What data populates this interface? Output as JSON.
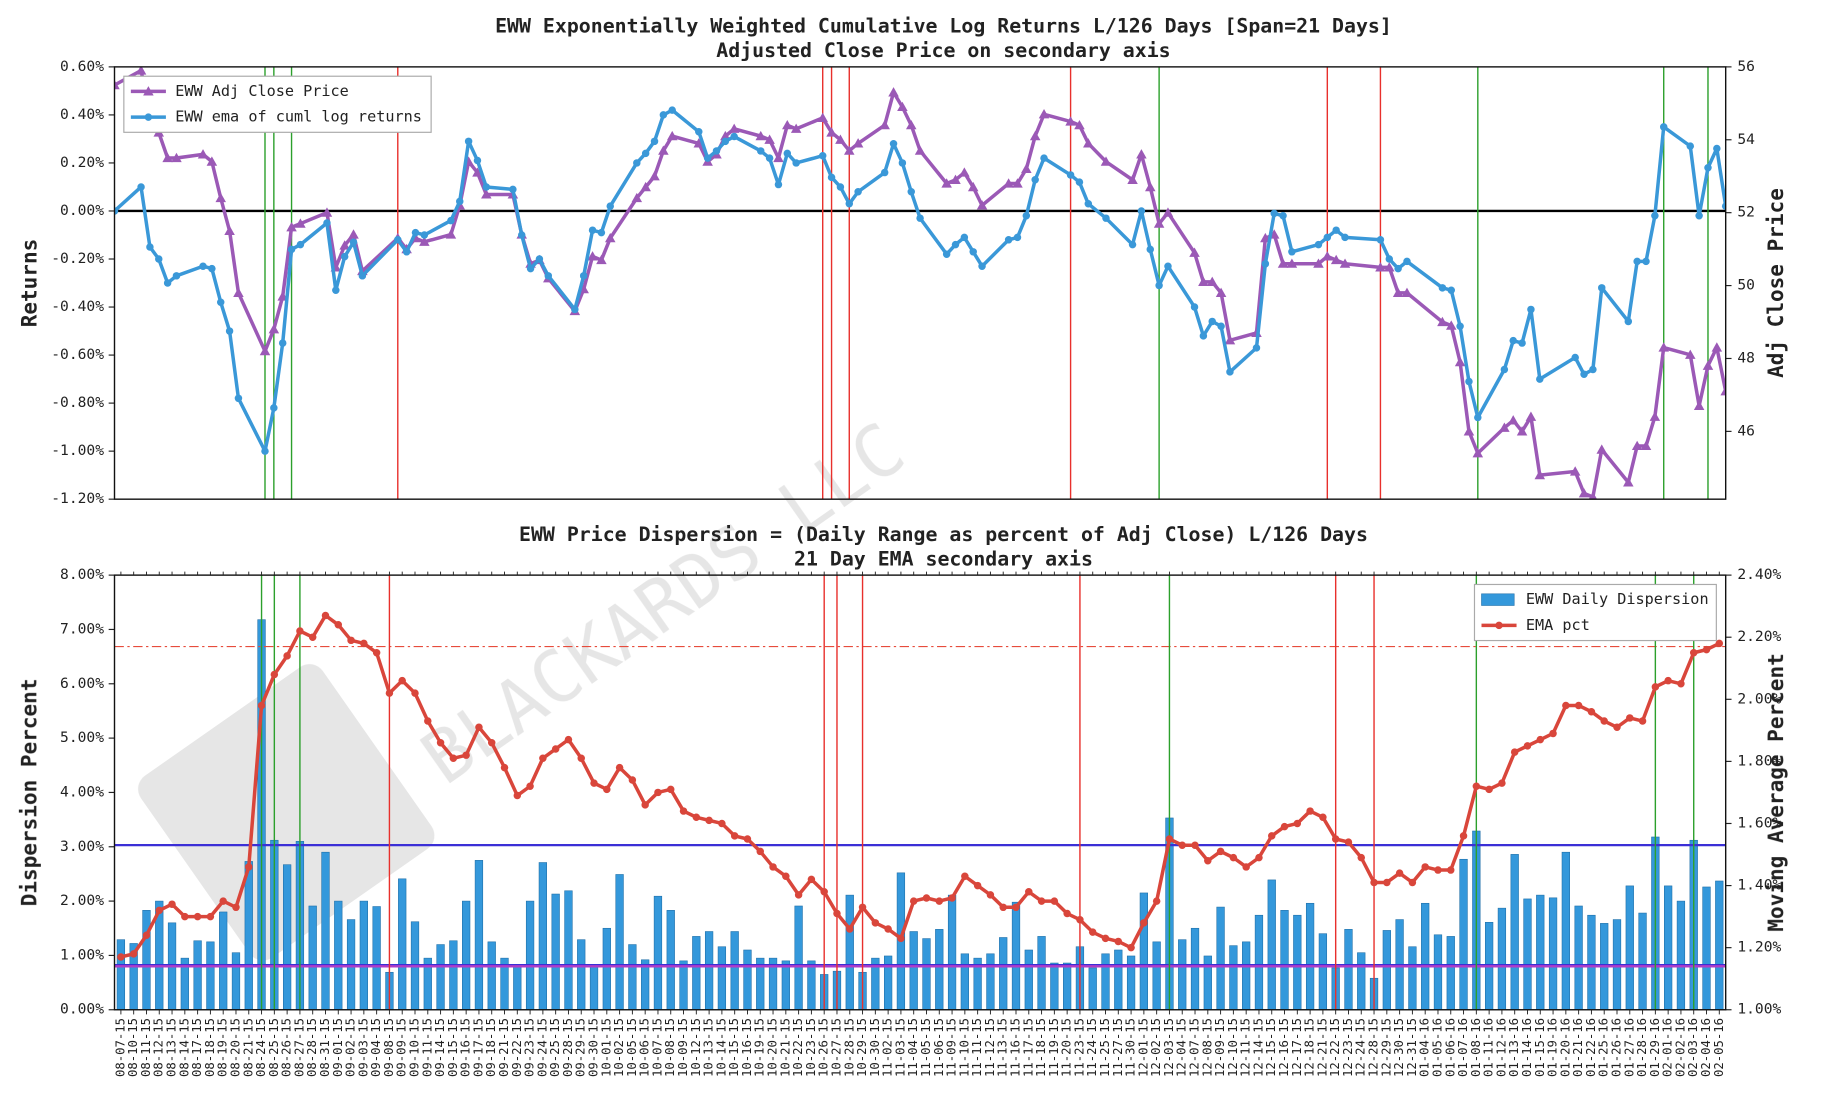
{
  "watermark": "BLACKARDS LLC",
  "chart_data": [
    {
      "type": "line",
      "title": "EWW Exponentially Weighted Cumulative Log Returns L/126 Days [Span=21 Days]",
      "subtitle": "Adjusted Close Price on secondary axis",
      "ylabel": "Returns",
      "y2label": "Adj Close Price",
      "ylim": [
        -1.2,
        0.6
      ],
      "yticks": [
        {
          "value": -1.2,
          "label": "-1.20%"
        },
        {
          "value": -1.0,
          "label": "-1.00%"
        },
        {
          "value": -0.8,
          "label": "-0.80%"
        },
        {
          "value": -0.6,
          "label": "-0.60%"
        },
        {
          "value": -0.4,
          "label": "-0.40%"
        },
        {
          "value": -0.2,
          "label": "-0.20%"
        },
        {
          "value": 0,
          "label": "0.00%"
        },
        {
          "value": 0.2,
          "label": "0.20%"
        },
        {
          "value": 0.4,
          "label": "0.40%"
        },
        {
          "value": 0.6,
          "label": "0.60%"
        }
      ],
      "y2lim": [
        44.14,
        56
      ],
      "y2ticks": [
        46,
        48,
        50,
        52,
        54,
        56
      ],
      "legend": "upper left",
      "hlines": [
        {
          "value": 0,
          "axis": "y",
          "color": "#000000",
          "style": "solid"
        }
      ],
      "green_markers": [
        "08-24-15",
        "08-25-15",
        "08-27-15",
        "12-03-15",
        "01-08-16",
        "01-29-16",
        "02-03-16"
      ],
      "red_markers": [
        "09-08-15",
        "10-26-15",
        "10-27-15",
        "10-29-15",
        "11-23-15",
        "12-22-15",
        "12-28-15"
      ],
      "series": [
        {
          "name": "EWW Adj Close Price",
          "color": "#9b59b6",
          "marker": "triangle",
          "axis": "y2",
          "values": [
            55.5,
            55.9,
            54.7,
            54.2,
            53.5,
            53.5,
            53.6,
            53.4,
            52.4,
            51.5,
            49.8,
            48.2,
            48.8,
            49.7,
            51.6,
            51.7,
            52.0,
            50.5,
            51.1,
            51.4,
            50.4,
            51.3,
            51.0,
            51.3,
            51.2,
            51.4,
            52.2,
            53.4,
            53.1,
            52.5,
            52.5,
            51.4,
            50.6,
            50.7,
            50.2,
            49.3,
            49.9,
            50.8,
            50.7,
            51.3,
            52.4,
            52.7,
            53.0,
            53.7,
            54.1,
            53.9,
            53.4,
            53.6,
            54.1,
            54.3,
            54.1,
            54.0,
            53.5,
            54.4,
            54.3,
            54.6,
            54.2,
            54.0,
            53.7,
            53.9,
            54.4,
            55.3,
            54.9,
            54.4,
            53.7,
            52.8,
            52.9,
            53.1,
            52.7,
            52.2,
            52.8,
            52.8,
            53.2,
            54.1,
            54.7,
            54.5,
            54.4,
            53.9,
            53.4,
            52.9,
            53.6,
            52.7,
            51.7,
            52.0,
            50.9,
            50.1,
            50.1,
            49.8,
            48.5,
            48.7,
            51.3,
            51.4,
            50.6,
            50.6,
            50.6,
            50.8,
            50.7,
            50.6,
            50.5,
            50.5,
            49.8,
            49.8,
            49.0,
            48.9,
            47.9,
            46.0,
            45.4,
            46.1,
            46.3,
            46.0,
            46.4,
            44.8,
            44.9,
            44.3,
            44.2,
            45.5,
            44.6,
            45.6,
            45.6,
            46.4,
            48.3,
            48.1,
            46.7,
            47.8,
            48.3,
            47.1
          ]
        },
        {
          "name": "EWW ema of cuml log returns",
          "color": "#3a98d8",
          "marker": "circle",
          "axis": "y",
          "values": [
            0.0,
            0.1,
            -0.15,
            -0.2,
            -0.3,
            -0.27,
            -0.23,
            -0.24,
            -0.38,
            -0.5,
            -0.78,
            -1.0,
            -0.82,
            -0.55,
            -0.16,
            -0.14,
            -0.05,
            -0.33,
            -0.19,
            -0.13,
            -0.27,
            -0.12,
            -0.17,
            -0.09,
            -0.1,
            -0.04,
            0.04,
            0.29,
            0.21,
            0.1,
            0.09,
            -0.1,
            -0.24,
            -0.2,
            -0.27,
            -0.41,
            -0.27,
            -0.08,
            -0.09,
            0.02,
            0.2,
            0.24,
            0.29,
            0.4,
            0.42,
            0.33,
            0.22,
            0.25,
            0.29,
            0.31,
            0.25,
            0.22,
            0.11,
            0.24,
            0.2,
            0.23,
            0.14,
            0.1,
            0.03,
            0.08,
            0.16,
            0.28,
            0.2,
            0.08,
            -0.03,
            -0.18,
            -0.14,
            -0.11,
            -0.17,
            -0.23,
            -0.12,
            -0.11,
            -0.02,
            0.13,
            0.22,
            0.15,
            0.12,
            0.03,
            -0.03,
            -0.14,
            0.0,
            -0.16,
            -0.31,
            -0.23,
            -0.4,
            -0.52,
            -0.46,
            -0.48,
            -0.67,
            -0.57,
            -0.22,
            -0.01,
            -0.02,
            -0.17,
            -0.14,
            -0.11,
            -0.08,
            -0.11,
            -0.12,
            -0.2,
            -0.24,
            -0.21,
            -0.32,
            -0.33,
            -0.48,
            -0.71,
            -0.86,
            -0.66,
            -0.54,
            -0.55,
            -0.41,
            -0.7,
            -0.61,
            -0.68,
            -0.66,
            -0.32,
            -0.46,
            -0.21,
            -0.21,
            -0.02,
            0.35,
            0.27,
            -0.02,
            0.18,
            0.26,
            0.02
          ]
        }
      ]
    },
    {
      "type": "bar",
      "title": "EWW Price Dispersion = (Daily Range as percent of Adj Close) L/126 Days",
      "subtitle": "21 Day EMA secondary axis",
      "ylabel": "Dispersion Percent",
      "y2label": "Moving Average Percent",
      "categories": [
        "08-07-15",
        "08-10-15",
        "08-11-15",
        "08-12-15",
        "08-13-15",
        "08-14-15",
        "08-17-15",
        "08-18-15",
        "08-19-15",
        "08-20-15",
        "08-21-15",
        "08-24-15",
        "08-25-15",
        "08-26-15",
        "08-27-15",
        "08-28-15",
        "08-31-15",
        "09-01-15",
        "09-02-15",
        "09-03-15",
        "09-04-15",
        "09-08-15",
        "09-09-15",
        "09-10-15",
        "09-11-15",
        "09-14-15",
        "09-15-15",
        "09-16-15",
        "09-17-15",
        "09-18-15",
        "09-21-15",
        "09-22-15",
        "09-23-15",
        "09-24-15",
        "09-25-15",
        "09-28-15",
        "09-29-15",
        "09-30-15",
        "10-01-15",
        "10-02-15",
        "10-05-15",
        "10-06-15",
        "10-07-15",
        "10-08-15",
        "10-09-15",
        "10-12-15",
        "10-13-15",
        "10-14-15",
        "10-15-15",
        "10-16-15",
        "10-19-15",
        "10-20-15",
        "10-21-15",
        "10-22-15",
        "10-23-15",
        "10-26-15",
        "10-27-15",
        "10-28-15",
        "10-29-15",
        "10-30-15",
        "11-02-15",
        "11-03-15",
        "11-04-15",
        "11-05-15",
        "11-06-15",
        "11-09-15",
        "11-10-15",
        "11-11-15",
        "11-12-15",
        "11-13-15",
        "11-16-15",
        "11-17-15",
        "11-18-15",
        "11-19-15",
        "11-20-15",
        "11-23-15",
        "11-24-15",
        "11-25-15",
        "11-27-15",
        "11-30-15",
        "12-01-15",
        "12-02-15",
        "12-03-15",
        "12-04-15",
        "12-07-15",
        "12-08-15",
        "12-09-15",
        "12-10-15",
        "12-11-15",
        "12-14-15",
        "12-15-15",
        "12-16-15",
        "12-17-15",
        "12-18-15",
        "12-21-15",
        "12-22-15",
        "12-23-15",
        "12-24-15",
        "12-28-15",
        "12-29-15",
        "12-30-15",
        "12-31-15",
        "01-04-16",
        "01-05-16",
        "01-06-16",
        "01-07-16",
        "01-08-16",
        "01-11-16",
        "01-12-16",
        "01-13-16",
        "01-14-16",
        "01-15-16",
        "01-19-16",
        "01-20-16",
        "01-21-16",
        "01-22-16",
        "01-25-16",
        "01-26-16",
        "01-27-16",
        "01-28-16",
        "01-29-16",
        "02-01-16",
        "02-02-16",
        "02-03-16",
        "02-04-16",
        "02-05-16"
      ],
      "ylim": [
        0,
        8
      ],
      "yticks": [
        {
          "value": 0,
          "label": "0.00%"
        },
        {
          "value": 1,
          "label": "1.00%"
        },
        {
          "value": 2,
          "label": "2.00%"
        },
        {
          "value": 3,
          "label": "3.00%"
        },
        {
          "value": 4,
          "label": "4.00%"
        },
        {
          "value": 5,
          "label": "5.00%"
        },
        {
          "value": 6,
          "label": "6.00%"
        },
        {
          "value": 7,
          "label": "7.00%"
        },
        {
          "value": 8,
          "label": "8.00%"
        }
      ],
      "y2lim": [
        1.0,
        2.4
      ],
      "y2ticks": [
        {
          "value": 1.0,
          "label": "1.00%"
        },
        {
          "value": 1.2,
          "label": "1.20%"
        },
        {
          "value": 1.4,
          "label": "1.40%"
        },
        {
          "value": 1.6,
          "label": "1.60%"
        },
        {
          "value": 1.8,
          "label": "1.80%"
        },
        {
          "value": 2.0,
          "label": "2.00%"
        },
        {
          "value": 2.2,
          "label": "2.20%"
        },
        {
          "value": 2.4,
          "label": "2.40%"
        }
      ],
      "legend": "upper right",
      "hlines": [
        {
          "value": 3.03,
          "axis": "y",
          "color": "#3b2fd6",
          "style": "solid"
        },
        {
          "value": 0.82,
          "axis": "y",
          "color": "#3b2fd6",
          "style": "solid"
        },
        {
          "value": 1.14,
          "axis": "y2",
          "color": "#b03cc8",
          "style": "solid"
        },
        {
          "value": 2.17,
          "axis": "y2",
          "color": "#e74c3c",
          "style": "dashdot"
        }
      ],
      "green_markers": [
        "08-24-15",
        "08-25-15",
        "08-27-15",
        "12-03-15",
        "01-08-16",
        "01-29-16",
        "02-03-16"
      ],
      "red_markers": [
        "09-08-15",
        "10-26-15",
        "10-27-15",
        "10-29-15",
        "11-23-15",
        "12-22-15",
        "12-28-15"
      ],
      "series": [
        {
          "name": "EWW Daily Dispersion",
          "color": "#3498db",
          "kind": "bar",
          "axis": "y",
          "values": [
            1.29,
            1.22,
            1.83,
            2.0,
            1.6,
            0.95,
            1.27,
            1.25,
            1.8,
            1.05,
            2.73,
            7.18,
            3.12,
            2.67,
            3.1,
            1.91,
            2.9,
            2.0,
            1.66,
            2.0,
            1.9,
            0.69,
            2.41,
            1.62,
            0.95,
            1.2,
            1.27,
            2.0,
            2.75,
            1.25,
            0.95,
            0.82,
            2.0,
            2.71,
            2.13,
            2.19,
            1.29,
            0.8,
            1.5,
            2.49,
            1.2,
            0.92,
            2.09,
            1.83,
            0.9,
            1.35,
            1.44,
            1.16,
            1.44,
            1.1,
            0.95,
            0.95,
            0.9,
            1.91,
            0.9,
            0.65,
            0.71,
            2.11,
            0.69,
            0.95,
            0.99,
            2.52,
            1.44,
            1.31,
            1.48,
            2.11,
            1.03,
            0.95,
            1.03,
            1.33,
            1.98,
            1.1,
            1.35,
            0.86,
            0.86,
            1.16,
            0.77,
            1.03,
            1.1,
            0.99,
            2.15,
            1.25,
            3.53,
            1.29,
            1.5,
            0.99,
            1.89,
            1.18,
            1.25,
            1.74,
            2.39,
            1.83,
            1.74,
            1.96,
            1.4,
            0.77,
            1.48,
            1.05,
            0.58,
            1.46,
            1.66,
            1.16,
            1.96,
            1.38,
            1.35,
            2.77,
            3.29,
            1.61,
            1.87,
            2.86,
            2.04,
            2.11,
            2.06,
            2.9,
            1.91,
            1.74,
            1.59,
            1.66,
            2.28,
            1.78,
            3.18,
            2.28,
            2.0,
            3.12,
            2.26,
            2.37
          ]
        },
        {
          "name": "EMA pct",
          "color": "#d9463b",
          "kind": "line",
          "marker": "circle",
          "axis": "y2",
          "values": [
            1.17,
            1.18,
            1.24,
            1.32,
            1.34,
            1.3,
            1.3,
            1.3,
            1.35,
            1.33,
            1.46,
            1.98,
            2.08,
            2.14,
            2.22,
            2.2,
            2.27,
            2.24,
            2.19,
            2.18,
            2.15,
            2.02,
            2.06,
            2.02,
            1.93,
            1.86,
            1.81,
            1.82,
            1.91,
            1.86,
            1.78,
            1.69,
            1.72,
            1.81,
            1.84,
            1.87,
            1.81,
            1.73,
            1.71,
            1.78,
            1.74,
            1.66,
            1.7,
            1.71,
            1.64,
            1.62,
            1.61,
            1.6,
            1.56,
            1.55,
            1.51,
            1.46,
            1.43,
            1.37,
            1.42,
            1.38,
            1.31,
            1.26,
            1.33,
            1.28,
            1.26,
            1.23,
            1.35,
            1.36,
            1.35,
            1.36,
            1.43,
            1.4,
            1.37,
            1.33,
            1.33,
            1.38,
            1.35,
            1.35,
            1.31,
            1.29,
            1.25,
            1.23,
            1.22,
            1.2,
            1.28,
            1.35,
            1.55,
            1.53,
            1.53,
            1.48,
            1.51,
            1.49,
            1.46,
            1.49,
            1.56,
            1.59,
            1.6,
            1.64,
            1.62,
            1.55,
            1.54,
            1.49,
            1.41,
            1.41,
            1.44,
            1.41,
            1.46,
            1.45,
            1.45,
            1.56,
            1.72,
            1.71,
            1.73,
            1.83,
            1.85,
            1.87,
            1.89,
            1.98,
            1.98,
            1.96,
            1.93,
            1.91,
            1.94,
            1.93,
            2.04,
            2.06,
            2.05,
            2.15,
            2.16,
            2.18
          ]
        }
      ]
    }
  ]
}
